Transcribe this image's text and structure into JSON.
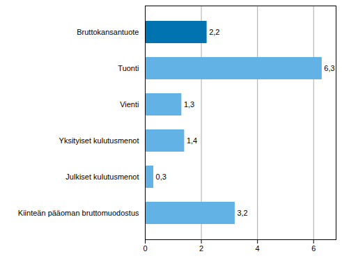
{
  "chart_data": {
    "type": "bar",
    "orientation": "horizontal",
    "categories": [
      "Bruttokansantuote",
      "Tuonti",
      "Vienti",
      "Yksityiset kulutusmenot",
      "Julkiset kulutusmenot",
      "Kiinteän pääoman bruttomuodostus"
    ],
    "values": [
      2.2,
      6.3,
      1.3,
      1.4,
      0.3,
      3.2
    ],
    "value_labels": [
      "2,2",
      "6,3",
      "1,3",
      "1,4",
      "0,3",
      "3,2"
    ],
    "colors": [
      "#0073b0",
      "#62b2e6",
      "#62b2e6",
      "#62b2e6",
      "#62b2e6",
      "#62b2e6"
    ],
    "xlim": [
      0,
      6.8
    ],
    "xticks": [
      0,
      2,
      4,
      6
    ],
    "grid": true,
    "data_labels": true
  }
}
